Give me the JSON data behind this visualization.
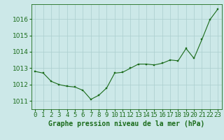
{
  "x": [
    0,
    1,
    2,
    3,
    4,
    5,
    6,
    7,
    8,
    9,
    10,
    11,
    12,
    13,
    14,
    15,
    16,
    17,
    18,
    19,
    20,
    21,
    22,
    23
  ],
  "y": [
    1012.8,
    1012.7,
    1012.2,
    1012.0,
    1011.9,
    1011.85,
    1011.65,
    1011.1,
    1011.35,
    1011.8,
    1012.7,
    1012.75,
    1013.0,
    1013.25,
    1013.25,
    1013.2,
    1013.3,
    1013.5,
    1013.45,
    1014.2,
    1013.6,
    1014.75,
    1015.95,
    1016.6
  ],
  "line_color": "#1a6b1a",
  "marker_color": "#1a6b1a",
  "background_color": "#cce8e8",
  "grid_color": "#aacece",
  "xlabel": "Graphe pression niveau de la mer (hPa)",
  "xlabel_color": "#1a6b1a",
  "tick_color": "#1a6b1a",
  "ylim": [
    1010.5,
    1016.9
  ],
  "xlim": [
    -0.5,
    23.5
  ],
  "yticks": [
    1011,
    1012,
    1013,
    1014,
    1015,
    1016
  ],
  "xtick_labels": [
    "0",
    "1",
    "2",
    "3",
    "4",
    "5",
    "6",
    "7",
    "8",
    "9",
    "10",
    "11",
    "12",
    "13",
    "14",
    "15",
    "16",
    "17",
    "18",
    "19",
    "20",
    "21",
    "22",
    "23"
  ],
  "font_size_xlabel": 7,
  "font_size_ticks": 6.5
}
